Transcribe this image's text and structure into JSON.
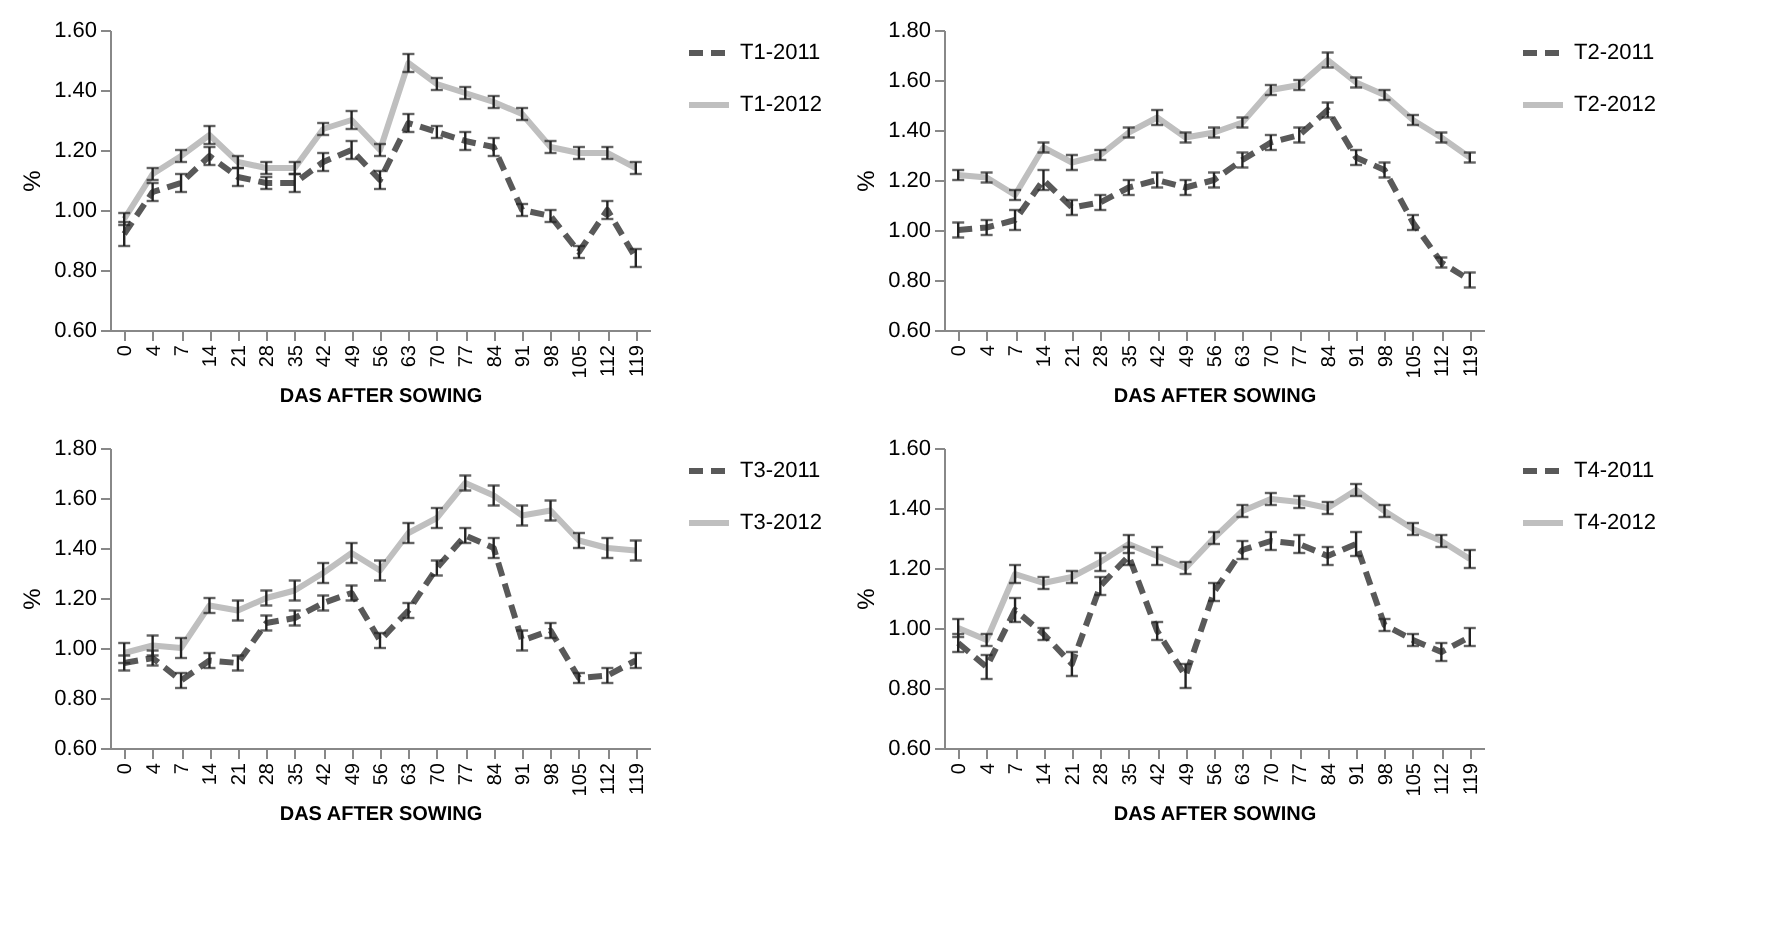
{
  "chart_data": [
    {
      "type": "line",
      "xlabel": "DAS AFTER SOWING",
      "ylabel": "%",
      "categories": [
        "0",
        "4",
        "7",
        "14",
        "21",
        "28",
        "35",
        "42",
        "49",
        "56",
        "63",
        "70",
        "77",
        "84",
        "91",
        "98",
        "105",
        "112",
        "119"
      ],
      "ylim": [
        0.6,
        1.6
      ],
      "yticks": [
        {
          "value": 0.6,
          "label": "0.60"
        },
        {
          "value": 0.8,
          "label": "0.80"
        },
        {
          "value": 1.0,
          "label": "1.00"
        },
        {
          "value": 1.2,
          "label": "1.20"
        },
        {
          "value": 1.4,
          "label": "1.40"
        },
        {
          "value": 1.6,
          "label": "1.60"
        }
      ],
      "grid": false,
      "legend": "top right",
      "marker": "none",
      "series": [
        {
          "name": "T1-2011",
          "color": "#595959",
          "line_style": "dashed",
          "values": [
            0.92,
            1.06,
            1.09,
            1.18,
            1.11,
            1.09,
            1.09,
            1.16,
            1.2,
            1.1,
            1.29,
            1.26,
            1.23,
            1.21,
            1.0,
            0.98,
            0.86,
            1.0,
            0.84
          ],
          "errors": [
            0.04,
            0.03,
            0.03,
            0.03,
            0.03,
            0.02,
            0.03,
            0.03,
            0.03,
            0.03,
            0.03,
            0.02,
            0.03,
            0.03,
            0.02,
            0.02,
            0.02,
            0.03,
            0.03
          ]
        },
        {
          "name": "T1-2012",
          "color": "#bfbfbf",
          "line_style": "solid",
          "values": [
            0.97,
            1.12,
            1.18,
            1.25,
            1.16,
            1.14,
            1.14,
            1.27,
            1.3,
            1.2,
            1.49,
            1.42,
            1.39,
            1.36,
            1.32,
            1.21,
            1.19,
            1.19,
            1.14
          ],
          "errors": [
            0.02,
            0.02,
            0.02,
            0.03,
            0.02,
            0.02,
            0.02,
            0.02,
            0.03,
            0.02,
            0.03,
            0.02,
            0.02,
            0.02,
            0.02,
            0.02,
            0.02,
            0.02,
            0.02
          ]
        }
      ]
    },
    {
      "type": "line",
      "xlabel": "DAS AFTER SOWING",
      "ylabel": "%",
      "categories": [
        "0",
        "4",
        "7",
        "14",
        "21",
        "28",
        "35",
        "42",
        "49",
        "56",
        "63",
        "70",
        "77",
        "84",
        "91",
        "98",
        "105",
        "112",
        "119"
      ],
      "ylim": [
        0.6,
        1.8
      ],
      "yticks": [
        {
          "value": 0.6,
          "label": "0.60"
        },
        {
          "value": 0.8,
          "label": "0.80"
        },
        {
          "value": 1.0,
          "label": "1.00"
        },
        {
          "value": 1.2,
          "label": "1.20"
        },
        {
          "value": 1.4,
          "label": "1.40"
        },
        {
          "value": 1.6,
          "label": "1.60"
        },
        {
          "value": 1.8,
          "label": "1.80"
        }
      ],
      "grid": false,
      "legend": "top right",
      "marker": "none",
      "series": [
        {
          "name": "T2-2011",
          "color": "#595959",
          "line_style": "dashed",
          "values": [
            1.0,
            1.01,
            1.04,
            1.2,
            1.09,
            1.11,
            1.17,
            1.2,
            1.17,
            1.2,
            1.28,
            1.35,
            1.38,
            1.48,
            1.29,
            1.24,
            1.03,
            0.87,
            0.8
          ],
          "errors": [
            0.03,
            0.03,
            0.04,
            0.04,
            0.03,
            0.03,
            0.03,
            0.03,
            0.03,
            0.03,
            0.03,
            0.03,
            0.03,
            0.03,
            0.03,
            0.03,
            0.03,
            0.02,
            0.03
          ]
        },
        {
          "name": "T2-2012",
          "color": "#bfbfbf",
          "line_style": "solid",
          "values": [
            1.22,
            1.21,
            1.14,
            1.33,
            1.27,
            1.3,
            1.39,
            1.45,
            1.37,
            1.39,
            1.43,
            1.56,
            1.58,
            1.68,
            1.59,
            1.54,
            1.44,
            1.37,
            1.29
          ],
          "errors": [
            0.02,
            0.02,
            0.02,
            0.02,
            0.03,
            0.02,
            0.02,
            0.03,
            0.02,
            0.02,
            0.02,
            0.02,
            0.02,
            0.03,
            0.02,
            0.02,
            0.02,
            0.02,
            0.02
          ]
        }
      ]
    },
    {
      "type": "line",
      "xlabel": "DAS AFTER SOWING",
      "ylabel": "%",
      "categories": [
        "0",
        "4",
        "7",
        "14",
        "21",
        "28",
        "35",
        "42",
        "49",
        "56",
        "63",
        "70",
        "77",
        "84",
        "91",
        "98",
        "105",
        "112",
        "119"
      ],
      "ylim": [
        0.6,
        1.8
      ],
      "yticks": [
        {
          "value": 0.6,
          "label": "0.60"
        },
        {
          "value": 0.8,
          "label": "0.80"
        },
        {
          "value": 1.0,
          "label": "1.00"
        },
        {
          "value": 1.2,
          "label": "1.20"
        },
        {
          "value": 1.4,
          "label": "1.40"
        },
        {
          "value": 1.6,
          "label": "1.60"
        },
        {
          "value": 1.8,
          "label": "1.80"
        }
      ],
      "grid": false,
      "legend": "top right",
      "marker": "none",
      "series": [
        {
          "name": "T3-2011",
          "color": "#595959",
          "line_style": "dashed",
          "values": [
            0.94,
            0.96,
            0.87,
            0.95,
            0.94,
            1.1,
            1.12,
            1.18,
            1.22,
            1.03,
            1.15,
            1.32,
            1.45,
            1.4,
            1.03,
            1.07,
            0.88,
            0.89,
            0.95
          ],
          "errors": [
            0.03,
            0.03,
            0.03,
            0.03,
            0.03,
            0.03,
            0.03,
            0.03,
            0.03,
            0.03,
            0.03,
            0.03,
            0.03,
            0.04,
            0.04,
            0.03,
            0.02,
            0.03,
            0.03
          ]
        },
        {
          "name": "T3-2012",
          "color": "#bfbfbf",
          "line_style": "solid",
          "values": [
            0.98,
            1.01,
            1.0,
            1.17,
            1.15,
            1.2,
            1.23,
            1.3,
            1.38,
            1.31,
            1.46,
            1.52,
            1.66,
            1.61,
            1.53,
            1.55,
            1.43,
            1.4,
            1.39
          ],
          "errors": [
            0.04,
            0.04,
            0.04,
            0.03,
            0.04,
            0.03,
            0.04,
            0.04,
            0.04,
            0.04,
            0.04,
            0.04,
            0.03,
            0.04,
            0.04,
            0.04,
            0.03,
            0.04,
            0.04
          ]
        }
      ]
    },
    {
      "type": "line",
      "xlabel": "DAS AFTER SOWING",
      "ylabel": "%",
      "categories": [
        "0",
        "4",
        "7",
        "14",
        "21",
        "28",
        "35",
        "42",
        "49",
        "56",
        "63",
        "70",
        "77",
        "84",
        "91",
        "98",
        "105",
        "112",
        "119"
      ],
      "ylim": [
        0.6,
        1.6
      ],
      "yticks": [
        {
          "value": 0.6,
          "label": "0.60"
        },
        {
          "value": 0.8,
          "label": "0.80"
        },
        {
          "value": 1.0,
          "label": "1.00"
        },
        {
          "value": 1.2,
          "label": "1.20"
        },
        {
          "value": 1.4,
          "label": "1.40"
        },
        {
          "value": 1.6,
          "label": "1.60"
        }
      ],
      "grid": false,
      "legend": "top right",
      "marker": "none",
      "series": [
        {
          "name": "T4-2011",
          "color": "#595959",
          "line_style": "dashed",
          "values": [
            0.95,
            0.87,
            1.06,
            0.98,
            0.88,
            1.14,
            1.24,
            0.99,
            0.84,
            1.12,
            1.26,
            1.29,
            1.28,
            1.24,
            1.28,
            1.01,
            0.96,
            0.92,
            0.97
          ],
          "errors": [
            0.03,
            0.04,
            0.04,
            0.02,
            0.04,
            0.03,
            0.03,
            0.03,
            0.04,
            0.03,
            0.03,
            0.03,
            0.03,
            0.03,
            0.04,
            0.02,
            0.02,
            0.03,
            0.03
          ]
        },
        {
          "name": "T4-2012",
          "color": "#bfbfbf",
          "line_style": "solid",
          "values": [
            1.0,
            0.96,
            1.18,
            1.15,
            1.17,
            1.22,
            1.28,
            1.24,
            1.2,
            1.3,
            1.39,
            1.43,
            1.42,
            1.4,
            1.46,
            1.39,
            1.33,
            1.29,
            1.23
          ],
          "errors": [
            0.03,
            0.02,
            0.03,
            0.02,
            0.02,
            0.03,
            0.03,
            0.03,
            0.02,
            0.02,
            0.02,
            0.02,
            0.02,
            0.02,
            0.02,
            0.02,
            0.02,
            0.02,
            0.03
          ]
        }
      ]
    }
  ]
}
